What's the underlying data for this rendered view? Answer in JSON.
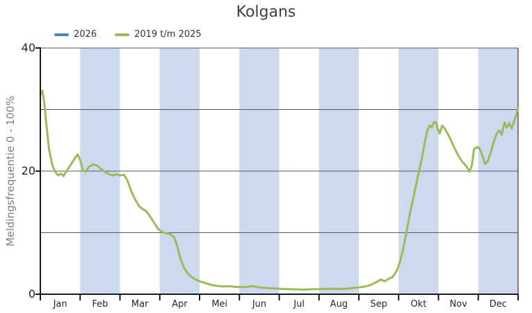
{
  "title": "Kolgans",
  "legend": [
    {
      "label": "2026",
      "color": "#4f81bd"
    },
    {
      "label": "2019 t/m 2025",
      "color": "#9bbb59"
    }
  ],
  "colors": {
    "band": "#cdd9ee",
    "grid": "#595959",
    "axis": "#1a1a1a",
    "right_border": "#333333",
    "title_text": "#404040",
    "y_axis_title_text": "#808080",
    "tick_label_text": "#262626",
    "series_2026": "#4f81bd",
    "series_2019_2025": "#9bbb59"
  },
  "chart_data": {
    "type": "line",
    "title": "Kolgans",
    "xlabel": "",
    "ylabel": "Meldingsfrequentie 0 - 100%",
    "ylim": [
      0,
      40
    ],
    "yticks": [
      0,
      20,
      40
    ],
    "ygridlines": [
      10,
      20,
      30,
      40
    ],
    "grid": "horizontal",
    "legend_position": "top-left",
    "categories": [
      "Jan",
      "Feb",
      "Mar",
      "Apr",
      "Mei",
      "Jun",
      "Jul",
      "Aug",
      "Sep",
      "Okt",
      "Nov",
      "Dec"
    ],
    "shaded_month_indices": [
      1,
      3,
      5,
      7,
      9,
      11
    ],
    "x_unit": "month fraction, 0 = start Jan, 12 = end Dec",
    "series": [
      {
        "name": "2026",
        "color": "#4f81bd",
        "points": []
      },
      {
        "name": "2019 t/m 2025",
        "color": "#9bbb59",
        "points": [
          [
            0.0,
            32.4
          ],
          [
            0.05,
            33.1
          ],
          [
            0.1,
            31.0
          ],
          [
            0.16,
            27.0
          ],
          [
            0.22,
            23.5
          ],
          [
            0.3,
            21.0
          ],
          [
            0.38,
            19.8
          ],
          [
            0.45,
            19.3
          ],
          [
            0.52,
            19.6
          ],
          [
            0.58,
            19.2
          ],
          [
            0.65,
            19.9
          ],
          [
            0.72,
            20.6
          ],
          [
            0.8,
            21.4
          ],
          [
            0.88,
            22.2
          ],
          [
            0.94,
            22.7
          ],
          [
            1.0,
            21.8
          ],
          [
            1.07,
            20.1
          ],
          [
            1.14,
            19.9
          ],
          [
            1.22,
            20.7
          ],
          [
            1.32,
            21.1
          ],
          [
            1.42,
            20.9
          ],
          [
            1.52,
            20.4
          ],
          [
            1.62,
            19.9
          ],
          [
            1.72,
            19.5
          ],
          [
            1.82,
            19.3
          ],
          [
            1.92,
            19.5
          ],
          [
            2.0,
            19.3
          ],
          [
            2.1,
            19.4
          ],
          [
            2.18,
            18.6
          ],
          [
            2.28,
            16.8
          ],
          [
            2.38,
            15.4
          ],
          [
            2.48,
            14.3
          ],
          [
            2.58,
            13.8
          ],
          [
            2.66,
            13.5
          ],
          [
            2.76,
            12.6
          ],
          [
            2.86,
            11.6
          ],
          [
            2.96,
            10.6
          ],
          [
            3.06,
            10.1
          ],
          [
            3.16,
            9.9
          ],
          [
            3.26,
            9.8
          ],
          [
            3.36,
            9.3
          ],
          [
            3.44,
            7.8
          ],
          [
            3.52,
            5.8
          ],
          [
            3.6,
            4.4
          ],
          [
            3.7,
            3.4
          ],
          [
            3.8,
            2.8
          ],
          [
            3.9,
            2.4
          ],
          [
            4.0,
            2.1
          ],
          [
            4.15,
            1.8
          ],
          [
            4.3,
            1.5
          ],
          [
            4.45,
            1.35
          ],
          [
            4.6,
            1.25
          ],
          [
            4.75,
            1.3
          ],
          [
            4.9,
            1.2
          ],
          [
            5.05,
            1.15
          ],
          [
            5.2,
            1.2
          ],
          [
            5.35,
            1.3
          ],
          [
            5.5,
            1.1
          ],
          [
            5.7,
            1.0
          ],
          [
            5.9,
            0.95
          ],
          [
            6.1,
            0.85
          ],
          [
            6.35,
            0.8
          ],
          [
            6.6,
            0.75
          ],
          [
            6.85,
            0.8
          ],
          [
            7.1,
            0.85
          ],
          [
            7.35,
            0.9
          ],
          [
            7.6,
            0.85
          ],
          [
            7.85,
            1.0
          ],
          [
            8.0,
            1.1
          ],
          [
            8.15,
            1.25
          ],
          [
            8.3,
            1.5
          ],
          [
            8.45,
            2.0
          ],
          [
            8.55,
            2.4
          ],
          [
            8.65,
            2.1
          ],
          [
            8.75,
            2.5
          ],
          [
            8.85,
            2.8
          ],
          [
            8.95,
            3.8
          ],
          [
            9.03,
            5.2
          ],
          [
            9.1,
            7.0
          ],
          [
            9.18,
            9.5
          ],
          [
            9.28,
            13.0
          ],
          [
            9.38,
            16.0
          ],
          [
            9.48,
            19.0
          ],
          [
            9.58,
            22.0
          ],
          [
            9.66,
            24.8
          ],
          [
            9.72,
            26.6
          ],
          [
            9.78,
            27.4
          ],
          [
            9.83,
            27.1
          ],
          [
            9.88,
            27.9
          ],
          [
            9.93,
            28.0
          ],
          [
            9.98,
            26.9
          ],
          [
            10.03,
            26.1
          ],
          [
            10.09,
            27.4
          ],
          [
            10.15,
            27.0
          ],
          [
            10.22,
            26.2
          ],
          [
            10.3,
            25.2
          ],
          [
            10.4,
            23.8
          ],
          [
            10.5,
            22.5
          ],
          [
            10.6,
            21.5
          ],
          [
            10.7,
            20.8
          ],
          [
            10.78,
            19.9
          ],
          [
            10.84,
            21.0
          ],
          [
            10.89,
            23.5
          ],
          [
            10.96,
            23.9
          ],
          [
            11.03,
            23.7
          ],
          [
            11.1,
            22.6
          ],
          [
            11.17,
            21.2
          ],
          [
            11.24,
            21.6
          ],
          [
            11.32,
            23.2
          ],
          [
            11.4,
            25.0
          ],
          [
            11.47,
            26.2
          ],
          [
            11.53,
            26.6
          ],
          [
            11.59,
            25.9
          ],
          [
            11.66,
            27.9
          ],
          [
            11.72,
            27.1
          ],
          [
            11.78,
            27.8
          ],
          [
            11.84,
            26.9
          ],
          [
            11.91,
            28.3
          ],
          [
            11.96,
            29.2
          ],
          [
            12.0,
            30.3
          ]
        ]
      }
    ]
  }
}
